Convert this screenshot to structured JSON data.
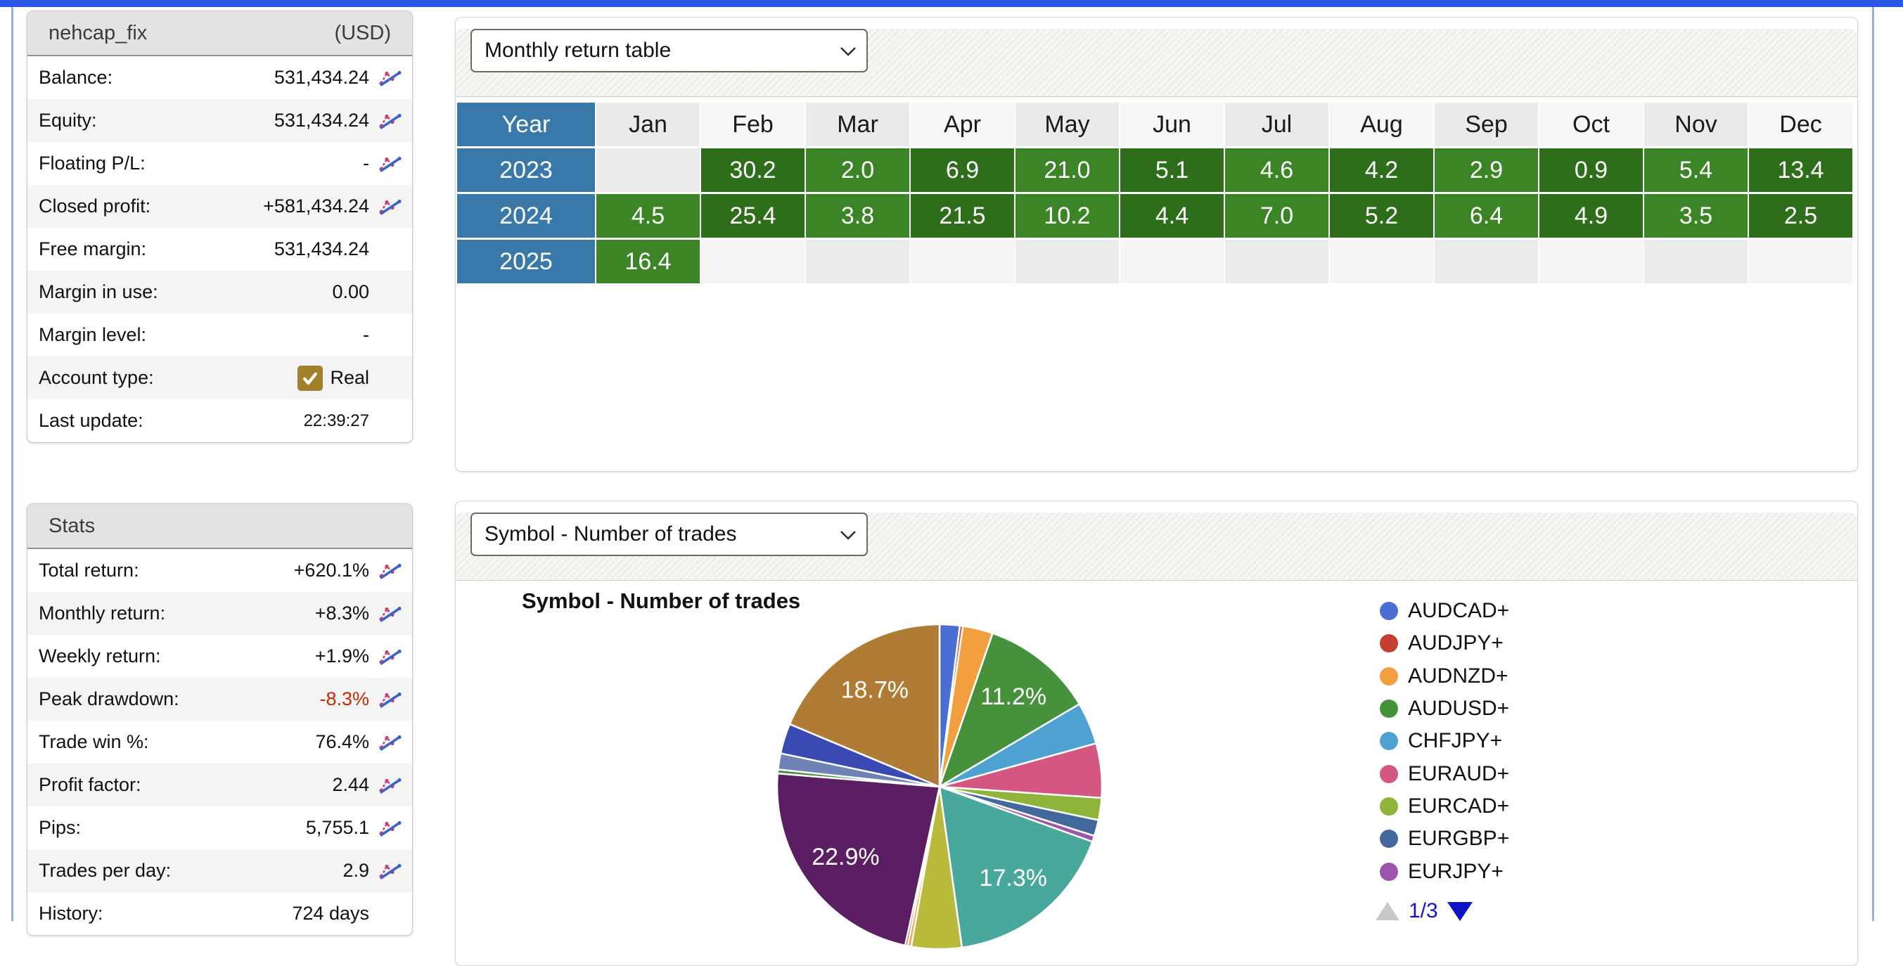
{
  "account": {
    "title": "nehcap_fix",
    "currency": "(USD)",
    "rows": [
      {
        "label": "Balance:",
        "value": "531,434.24",
        "icon": true
      },
      {
        "label": "Equity:",
        "value": "531,434.24",
        "icon": true
      },
      {
        "label": "Floating P/L:",
        "value": "-",
        "icon": true
      },
      {
        "label": "Closed profit:",
        "value": "+581,434.24",
        "icon": true
      },
      {
        "label": "Free margin:",
        "value": "531,434.24",
        "icon": false
      },
      {
        "label": "Margin in use:",
        "value": "0.00",
        "icon": false
      },
      {
        "label": "Margin level:",
        "value": "-",
        "icon": false
      },
      {
        "label": "Account type:",
        "value": "Real",
        "icon": false,
        "checkbox": true
      },
      {
        "label": "Last update:",
        "value": "22:39:27",
        "icon": false,
        "small": true
      }
    ]
  },
  "stats": {
    "title": "Stats",
    "rows": [
      {
        "label": "Total return:",
        "value": "+620.1%",
        "icon": true
      },
      {
        "label": "Monthly return:",
        "value": "+8.3%",
        "icon": true
      },
      {
        "label": "Weekly return:",
        "value": "+1.9%",
        "icon": true
      },
      {
        "label": "Peak drawdown:",
        "value": "-8.3%",
        "icon": true,
        "negative": true
      },
      {
        "label": "Trade win %:",
        "value": "76.4%",
        "icon": true
      },
      {
        "label": "Profit factor:",
        "value": "2.44",
        "icon": true
      },
      {
        "label": "Pips:",
        "value": "5,755.1",
        "icon": true
      },
      {
        "label": "Trades per day:",
        "value": "2.9",
        "icon": true
      },
      {
        "label": "History:",
        "value": "724 days",
        "icon": false
      }
    ]
  },
  "monthly_panel": {
    "selector": "Monthly return table"
  },
  "pie_panel": {
    "selector": "Symbol - Number of trades"
  },
  "chart_data": [
    {
      "type": "table",
      "title": "Monthly return table",
      "columns": [
        "Year",
        "Jan",
        "Feb",
        "Mar",
        "Apr",
        "May",
        "Jun",
        "Jul",
        "Aug",
        "Sep",
        "Oct",
        "Nov",
        "Dec"
      ],
      "rows": [
        {
          "year": "2023",
          "values": [
            "",
            "30.2",
            "2.0",
            "6.9",
            "21.0",
            "5.1",
            "4.6",
            "4.2",
            "2.9",
            "0.9",
            "5.4",
            "13.4"
          ]
        },
        {
          "year": "2024",
          "values": [
            "4.5",
            "25.4",
            "3.8",
            "21.5",
            "10.2",
            "4.4",
            "7.0",
            "5.2",
            "6.4",
            "4.9",
            "3.5",
            "2.5"
          ]
        },
        {
          "year": "2025",
          "values": [
            "16.4",
            "",
            "",
            "",
            "",
            "",
            "",
            "",
            "",
            "",
            "",
            ""
          ]
        }
      ],
      "cell_colors": {
        "year_bg": "#3879a9",
        "value_green_light": "#3c8526",
        "value_green_dark": "#2e6e1b",
        "empty_light": "#f5f5f5",
        "empty_dark": "#ebebeb"
      }
    },
    {
      "type": "pie",
      "title": "Symbol - Number of trades",
      "slices": [
        {
          "name": "AUDCAD+",
          "pct": 2.0,
          "color": "#4a6fd4"
        },
        {
          "name": "AUDJPY+",
          "pct": 0.3,
          "color": "#c4402e"
        },
        {
          "name": "AUDNZD+",
          "pct": 3.0,
          "color": "#f2a03f"
        },
        {
          "name": "AUDUSD+",
          "pct": 11.2,
          "color": "#46923c",
          "label_shown": true
        },
        {
          "name": "CHFJPY+",
          "pct": 4.2,
          "color": "#4ea2d2"
        },
        {
          "name": "EURAUD+",
          "pct": 5.4,
          "color": "#d45682"
        },
        {
          "name": "EURCAD+",
          "pct": 2.2,
          "color": "#8eb43a"
        },
        {
          "name": "EURGBP+",
          "pct": 1.6,
          "color": "#43689c"
        },
        {
          "name": "EURJPY+",
          "pct": 0.6,
          "color": "#9c55ad"
        },
        {
          "name": "",
          "pct": 17.3,
          "color": "#49a89c",
          "label_shown": true
        },
        {
          "name": "",
          "pct": 5.0,
          "color": "#b9b93c"
        },
        {
          "name": "",
          "pct": 0.35,
          "color": "#f2a03f"
        },
        {
          "name": "",
          "pct": 0.25,
          "color": "#c4402e"
        },
        {
          "name": "",
          "pct": 22.9,
          "color": "#5c1e62",
          "label_shown": true
        },
        {
          "name": "",
          "pct": 0.4,
          "color": "#46923c"
        },
        {
          "name": "",
          "pct": 1.6,
          "color": "#6e82b8"
        },
        {
          "name": "",
          "pct": 3.0,
          "color": "#3b49b3"
        },
        {
          "name": "",
          "pct": 18.7,
          "color": "#b07b35",
          "label_shown": true
        }
      ],
      "shown_labels": [
        "18.7%",
        "11.2%",
        "17.3%",
        "22.9%"
      ],
      "legend": [
        {
          "label": "AUDCAD+",
          "color": "#4a6fd4"
        },
        {
          "label": "AUDJPY+",
          "color": "#c4402e"
        },
        {
          "label": "AUDNZD+",
          "color": "#f2a03f"
        },
        {
          "label": "AUDUSD+",
          "color": "#46923c"
        },
        {
          "label": "CHFJPY+",
          "color": "#4ea2d2"
        },
        {
          "label": "EURAUD+",
          "color": "#d45682"
        },
        {
          "label": "EURCAD+",
          "color": "#8eb43a"
        },
        {
          "label": "EURGBP+",
          "color": "#43689c"
        },
        {
          "label": "EURJPY+",
          "color": "#9c55ad"
        }
      ],
      "legend_position": "right",
      "pagination": {
        "current": "1/3"
      }
    }
  ],
  "colors": {
    "accent_bar": "#2b57e6",
    "frame_line": "#94b0dd",
    "negative_value": "#c32a00",
    "pager_blue": "#1414cc",
    "checkbox_gold": "#a3802c"
  }
}
